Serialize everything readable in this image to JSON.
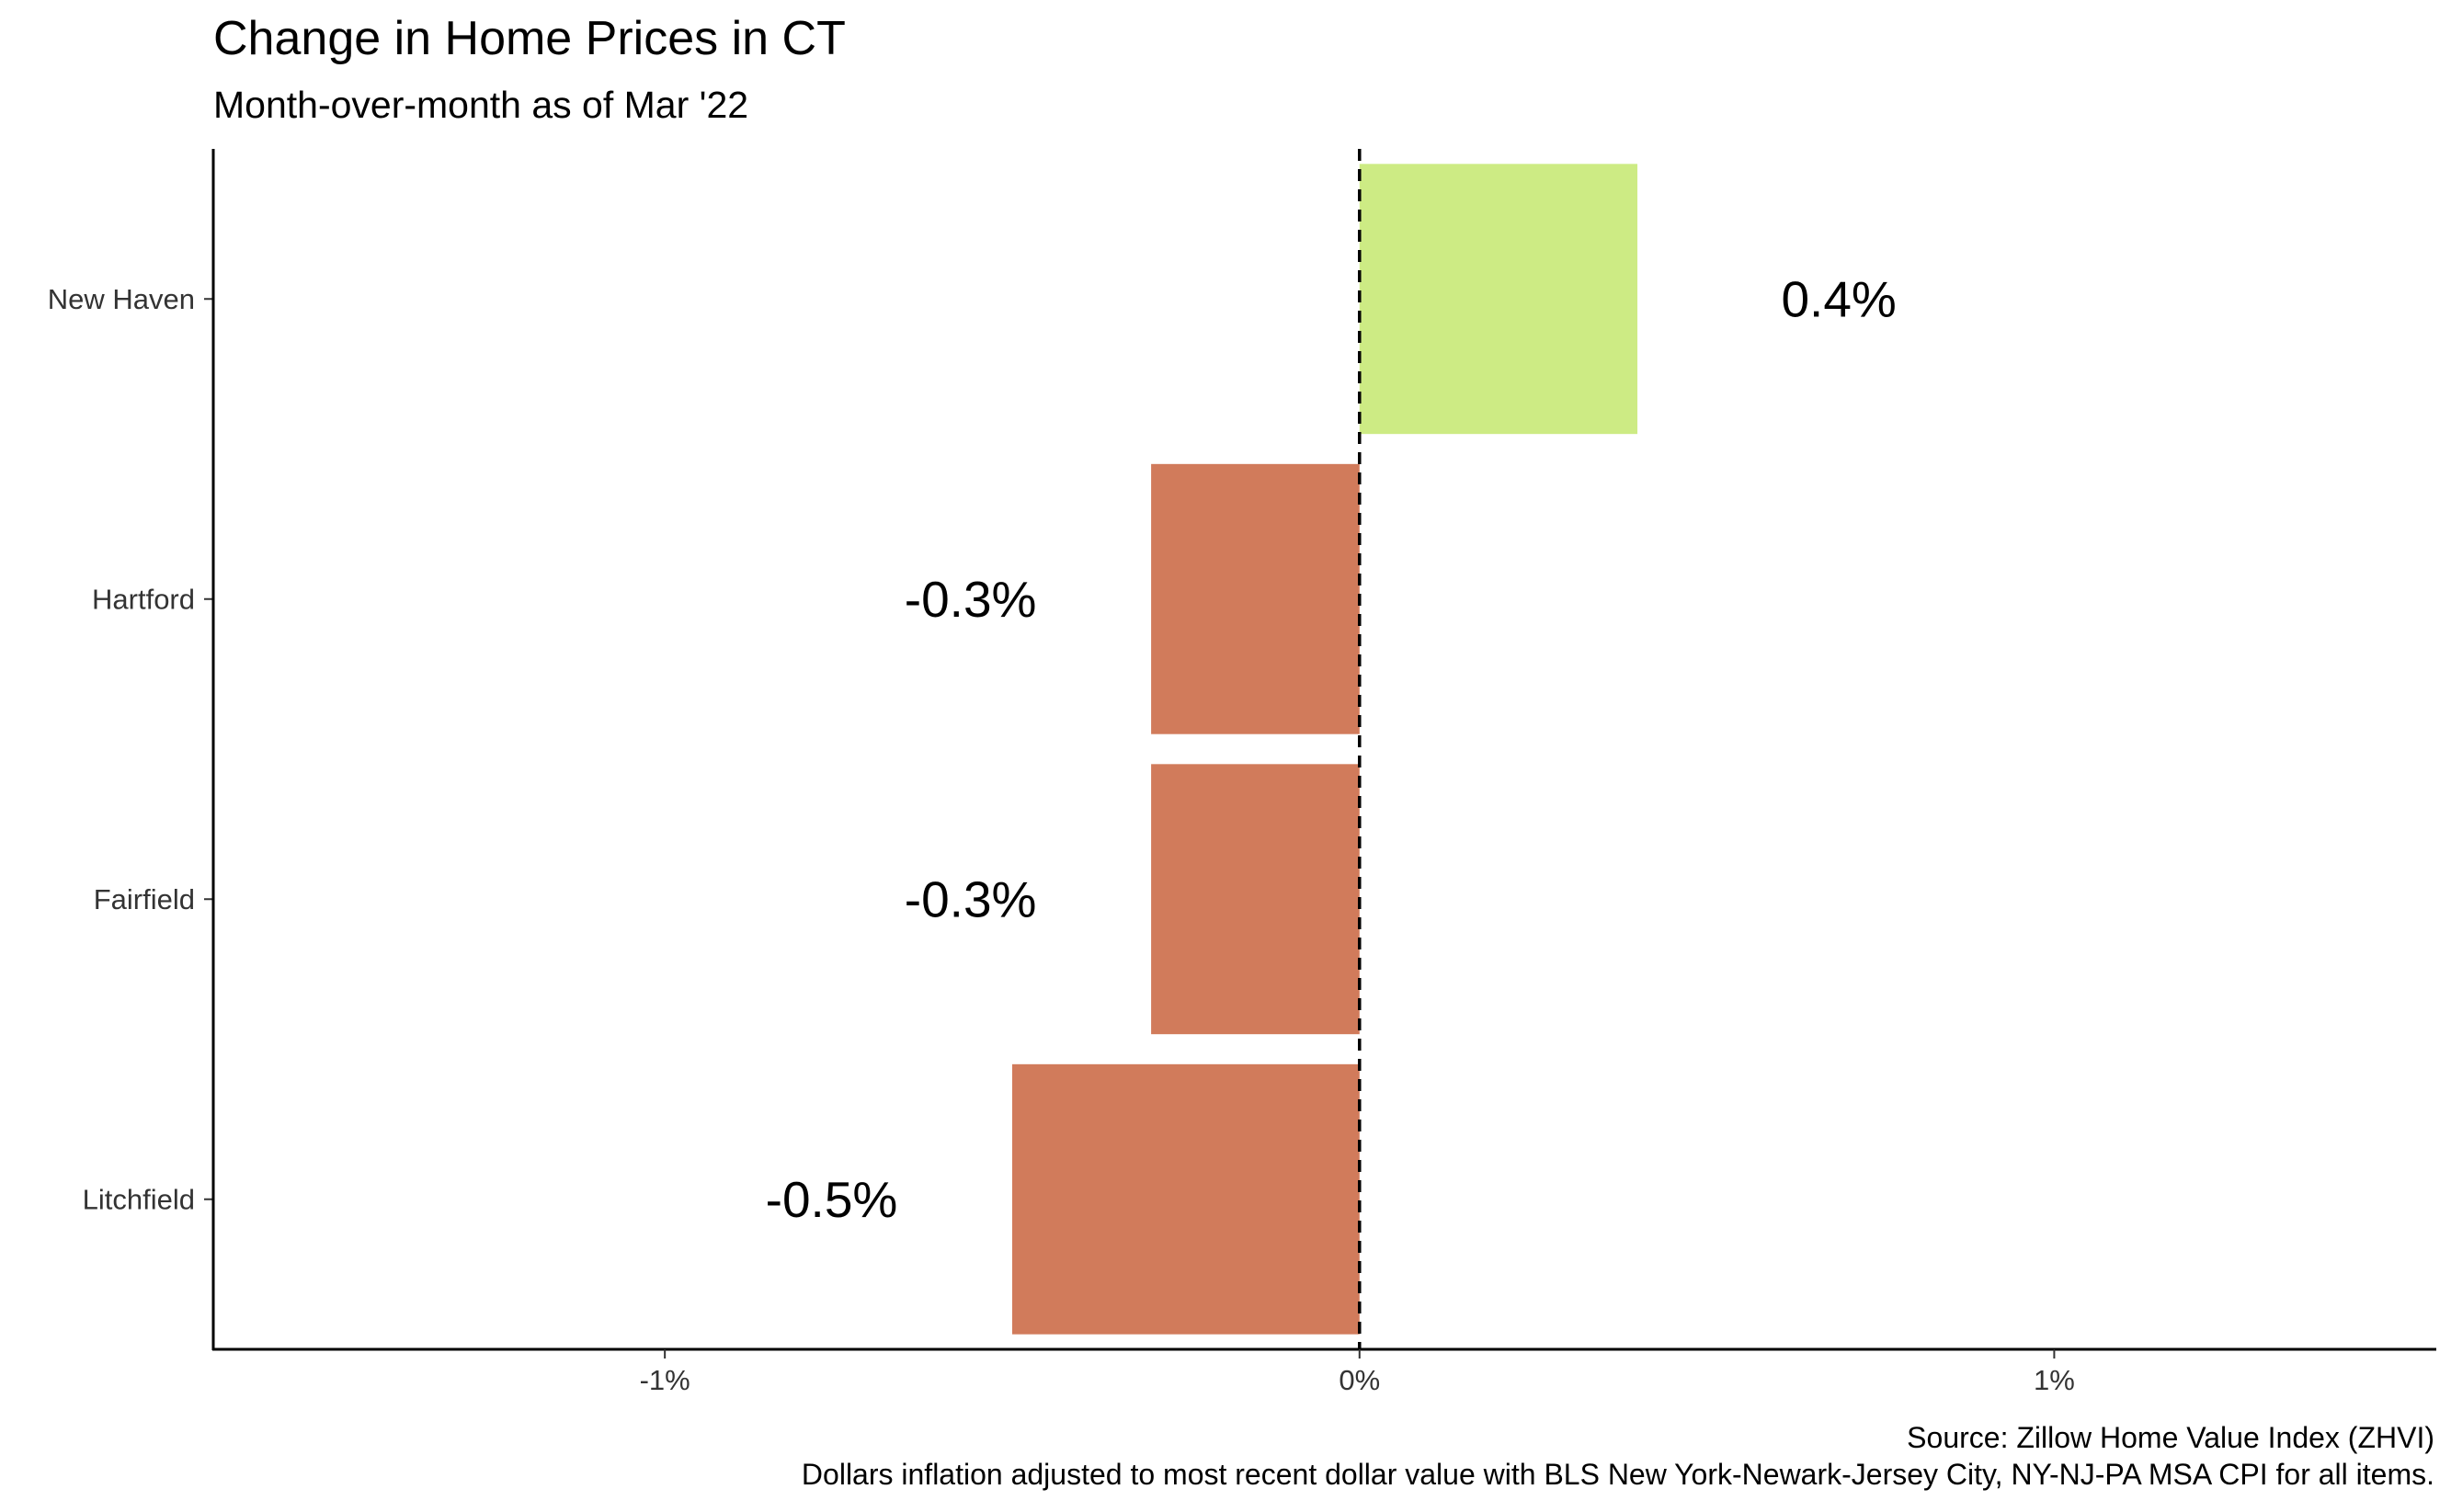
{
  "chart_data": {
    "type": "bar",
    "orientation": "horizontal",
    "title": "Change in Home Prices in CT",
    "subtitle": "Month-over-month as of Mar '22",
    "categories": [
      "New Haven",
      "Hartford",
      "Fairfield",
      "Litchfield"
    ],
    "values": [
      0.4,
      -0.3,
      -0.3,
      -0.5
    ],
    "value_labels": [
      "0.4%",
      "-0.3%",
      "-0.3%",
      "-0.5%"
    ],
    "xlim": [
      -1.65,
      1.55
    ],
    "x_ticks": [
      -1,
      0,
      1
    ],
    "x_tick_labels": [
      "-1%",
      "0%",
      "1%"
    ],
    "reference_line": {
      "x": 0,
      "style": "dashed"
    },
    "grid": false,
    "legend": "none",
    "colors": {
      "positive": "#CDEB84",
      "negative": "#D17B5B",
      "axis": "#000000"
    },
    "caption": [
      "Source: Zillow Home Value Index (ZHVI)",
      "Dollars inflation adjusted to most recent dollar value with BLS New York-Newark-Jersey City, NY-NJ-PA MSA CPI for all items."
    ]
  }
}
